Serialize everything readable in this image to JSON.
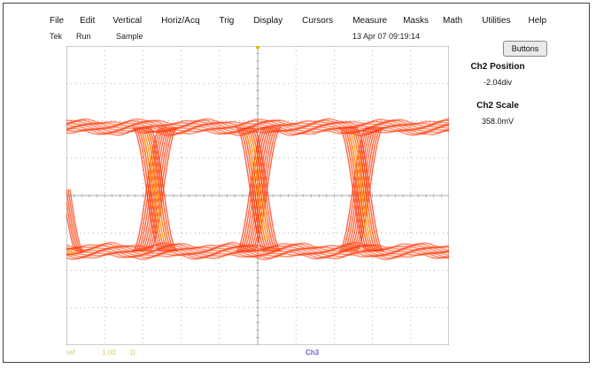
{
  "menu": [
    {
      "id": "file",
      "label": "File"
    },
    {
      "id": "edit",
      "label": "Edit"
    },
    {
      "id": "vertical",
      "label": "Vertical"
    },
    {
      "id": "horizacq",
      "label": "Horiz/Acq"
    },
    {
      "id": "trig",
      "label": "Trig"
    },
    {
      "id": "display",
      "label": "Display"
    },
    {
      "id": "cursors",
      "label": "Cursors"
    },
    {
      "id": "measure",
      "label": "Measure"
    },
    {
      "id": "masks",
      "label": "Masks"
    },
    {
      "id": "math",
      "label": "Math"
    },
    {
      "id": "utilities",
      "label": "Utilities"
    },
    {
      "id": "help",
      "label": "Help"
    }
  ],
  "status": {
    "brand": "Tek",
    "run_state": "Run",
    "acq_mode": "Sample",
    "datetime": "13 Apr 07 09:19:14"
  },
  "buttons_label": "Buttons",
  "side_panel": {
    "position_title": "Ch2 Position",
    "position_value": "-2.04div",
    "scale_title": "Ch2 Scale",
    "scale_value": "358.0mV"
  },
  "display": {
    "trace_color": "#ff3300",
    "crossing_color": "#ffcc00",
    "graticule_color": "#9a9a9a",
    "channel_marker_color": "#e0b800",
    "divisions_x": 10,
    "divisions_y": 8,
    "ch_marker_label": "M2"
  },
  "bottom_readouts": [
    {
      "id": "r1",
      "text": "ref",
      "color": "#d8c860"
    },
    {
      "id": "r2",
      "text": "1.00",
      "color": "#d8c860"
    },
    {
      "id": "r3",
      "text": "Ω",
      "color": "#d8c860"
    }
  ],
  "channel_tab": "Ch3"
}
